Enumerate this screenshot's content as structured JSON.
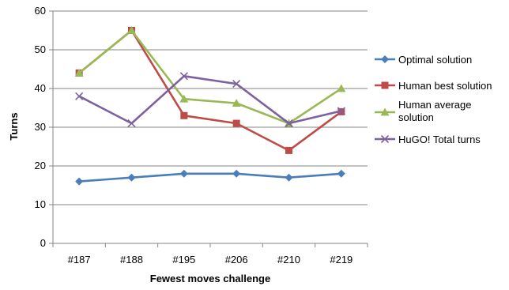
{
  "chart_data": {
    "type": "line",
    "title": "",
    "xlabel": "Fewest moves challenge",
    "ylabel": "Turns",
    "categories": [
      "#187",
      "#188",
      "#195",
      "#206",
      "#210",
      "#219"
    ],
    "ylim": [
      0,
      60
    ],
    "yticks": [
      0,
      10,
      20,
      30,
      40,
      50,
      60
    ],
    "grid": true,
    "legend_position": "right",
    "series": [
      {
        "name": "Optimal solution",
        "color": "#4a7ebb",
        "marker": "diamond",
        "values": [
          16,
          17,
          18,
          18,
          17,
          18
        ]
      },
      {
        "name": "Human best solution",
        "color": "#be4b48",
        "marker": "square",
        "values": [
          44,
          55,
          33,
          31,
          24,
          34
        ]
      },
      {
        "name": "Human average solution",
        "legend_lines": [
          "Human average",
          "solution"
        ],
        "color": "#98b954",
        "marker": "triangle",
        "values": [
          44,
          55,
          37.3,
          36.2,
          31,
          40
        ]
      },
      {
        "name": "HuGO! Total turns",
        "color": "#7d60a0",
        "marker": "x",
        "values": [
          38,
          31,
          43.2,
          41.2,
          31,
          34.2
        ]
      }
    ]
  }
}
